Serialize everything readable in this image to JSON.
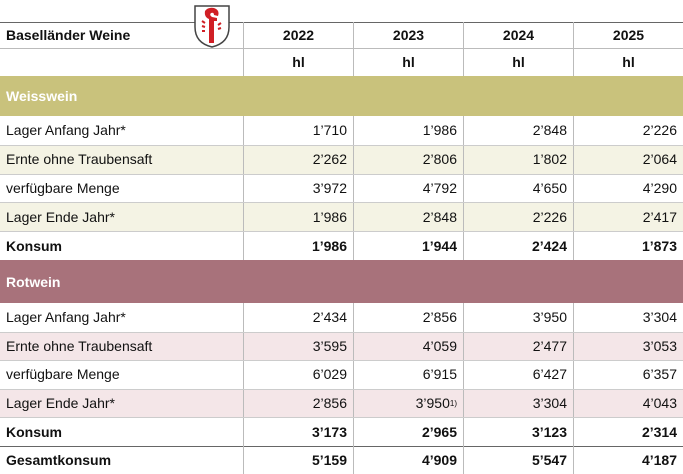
{
  "header": {
    "title": "Baselländer Weine",
    "years": [
      "2022",
      "2023",
      "2024",
      "2025"
    ],
    "units": [
      "hl",
      "hl",
      "hl",
      "hl"
    ]
  },
  "sections": [
    {
      "name": "Weisswein",
      "rows": [
        {
          "label": "Lager Anfang Jahr*",
          "values": [
            "1’710",
            "1’986",
            "2’848",
            "2’226"
          ]
        },
        {
          "label": "Ernte ohne Traubensaft",
          "values": [
            "2’262",
            "2’806",
            "1’802",
            "2’064"
          ]
        },
        {
          "label": "verfügbare Menge",
          "values": [
            "3’972",
            "4’792",
            "4’650",
            "4’290"
          ]
        },
        {
          "label": "Lager Ende Jahr*",
          "values": [
            "1’986",
            "2’848",
            "2’226",
            "2’417"
          ]
        },
        {
          "label": "Konsum",
          "values": [
            "1’986",
            "1’944",
            "2’424",
            "1’873"
          ]
        }
      ]
    },
    {
      "name": "Rotwein",
      "rows": [
        {
          "label": "Lager Anfang Jahr*",
          "values": [
            "2’434",
            "2’856",
            "3’950",
            "3’304"
          ]
        },
        {
          "label": "Ernte ohne Traubensaft",
          "values": [
            "3’595",
            "4’059",
            "2’477",
            "3’053"
          ]
        },
        {
          "label": "verfügbare Menge",
          "values": [
            "6’029",
            "6’915",
            "6’427",
            "6’357"
          ]
        },
        {
          "label": "Lager Ende Jahr*",
          "values": [
            "2’856",
            {
              "text": "3’950",
              "note": "1)"
            },
            "3’304",
            "4’043"
          ]
        },
        {
          "label": "Konsum",
          "values": [
            "3’173",
            "2’965",
            "3’123",
            "2’314"
          ]
        }
      ]
    }
  ],
  "total": {
    "label": "Gesamtkonsum",
    "values": [
      "5’159",
      "4’909",
      "5’547",
      "4’187"
    ]
  }
}
